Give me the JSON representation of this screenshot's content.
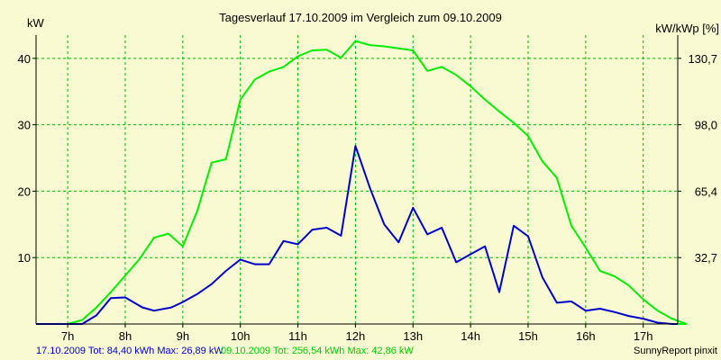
{
  "chart_data": {
    "type": "line",
    "title": "Tagesverlauf 17.10.2009 im Vergleich zum 09.10.2009",
    "ylabel_left": "kW",
    "ylabel_right": "kW/kWp [%]",
    "x_unit": "hour of day",
    "xlim": [
      6.45,
      17.6
    ],
    "ylim": [
      0,
      43.5
    ],
    "grid": true,
    "x_ticks": [
      {
        "v": 7,
        "label": "7h"
      },
      {
        "v": 8,
        "label": "8h"
      },
      {
        "v": 9,
        "label": "9h"
      },
      {
        "v": 10,
        "label": "10h"
      },
      {
        "v": 11,
        "label": "11h"
      },
      {
        "v": 12,
        "label": "12h"
      },
      {
        "v": 13,
        "label": "13h"
      },
      {
        "v": 14,
        "label": "14h"
      },
      {
        "v": 15,
        "label": "15h"
      },
      {
        "v": 16,
        "label": "16h"
      },
      {
        "v": 17,
        "label": "17h"
      }
    ],
    "y_ticks_left": [
      {
        "v": 10,
        "label": "10"
      },
      {
        "v": 20,
        "label": "20"
      },
      {
        "v": 30,
        "label": "30"
      },
      {
        "v": 40,
        "label": "40"
      }
    ],
    "y_ticks_right": [
      {
        "v": 10,
        "label": "32,7"
      },
      {
        "v": 20,
        "label": "65,4"
      },
      {
        "v": 30,
        "label": "98,0"
      },
      {
        "v": 40,
        "label": "130,7"
      }
    ],
    "series": [
      {
        "name": "17.10.2009",
        "color": "#0000cc",
        "points": [
          [
            6.45,
            0
          ],
          [
            6.9,
            0
          ],
          [
            7.25,
            0
          ],
          [
            7.5,
            1.3
          ],
          [
            7.75,
            3.9
          ],
          [
            8.0,
            4.0
          ],
          [
            8.3,
            2.5
          ],
          [
            8.5,
            2.0
          ],
          [
            8.8,
            2.5
          ],
          [
            9.0,
            3.3
          ],
          [
            9.25,
            4.5
          ],
          [
            9.5,
            6.0
          ],
          [
            9.75,
            8.0
          ],
          [
            10.0,
            9.7
          ],
          [
            10.25,
            9.0
          ],
          [
            10.5,
            9.0
          ],
          [
            10.75,
            12.5
          ],
          [
            11.0,
            12.0
          ],
          [
            11.25,
            14.2
          ],
          [
            11.5,
            14.5
          ],
          [
            11.75,
            13.3
          ],
          [
            12.0,
            26.8
          ],
          [
            12.25,
            20.5
          ],
          [
            12.5,
            15.0
          ],
          [
            12.75,
            12.3
          ],
          [
            13.0,
            17.5
          ],
          [
            13.25,
            13.5
          ],
          [
            13.5,
            14.5
          ],
          [
            13.75,
            9.3
          ],
          [
            14.0,
            10.5
          ],
          [
            14.25,
            11.7
          ],
          [
            14.5,
            4.8
          ],
          [
            14.75,
            14.8
          ],
          [
            15.0,
            13.2
          ],
          [
            15.25,
            7.0
          ],
          [
            15.5,
            3.2
          ],
          [
            15.75,
            3.4
          ],
          [
            16.0,
            2.0
          ],
          [
            16.25,
            2.3
          ],
          [
            16.5,
            1.8
          ],
          [
            16.75,
            1.2
          ],
          [
            17.0,
            0.8
          ],
          [
            17.25,
            0.2
          ],
          [
            17.5,
            0
          ],
          [
            17.6,
            0
          ]
        ]
      },
      {
        "name": "09.10.2009",
        "color": "#00ee00",
        "points": [
          [
            6.45,
            0
          ],
          [
            7.0,
            0
          ],
          [
            7.25,
            0.6
          ],
          [
            7.5,
            2.5
          ],
          [
            7.75,
            4.8
          ],
          [
            8.0,
            7.3
          ],
          [
            8.25,
            9.8
          ],
          [
            8.5,
            13.0
          ],
          [
            8.75,
            13.6
          ],
          [
            9.0,
            11.7
          ],
          [
            9.25,
            17.0
          ],
          [
            9.5,
            24.3
          ],
          [
            9.75,
            24.8
          ],
          [
            10.0,
            33.8
          ],
          [
            10.25,
            36.8
          ],
          [
            10.5,
            38.0
          ],
          [
            10.75,
            38.7
          ],
          [
            11.0,
            40.3
          ],
          [
            11.25,
            41.2
          ],
          [
            11.5,
            41.3
          ],
          [
            11.75,
            40.1
          ],
          [
            12.0,
            42.6
          ],
          [
            12.25,
            42.0
          ],
          [
            12.5,
            41.8
          ],
          [
            12.75,
            41.5
          ],
          [
            13.0,
            41.2
          ],
          [
            13.25,
            38.1
          ],
          [
            13.5,
            38.7
          ],
          [
            13.75,
            37.5
          ],
          [
            14.0,
            35.8
          ],
          [
            14.25,
            33.8
          ],
          [
            14.5,
            32.0
          ],
          [
            14.75,
            30.3
          ],
          [
            15.0,
            28.3
          ],
          [
            15.25,
            24.5
          ],
          [
            15.5,
            22.0
          ],
          [
            15.75,
            14.8
          ],
          [
            16.0,
            11.5
          ],
          [
            16.25,
            8.0
          ],
          [
            16.5,
            7.2
          ],
          [
            16.75,
            5.8
          ],
          [
            17.0,
            3.7
          ],
          [
            17.25,
            2.0
          ],
          [
            17.5,
            0.8
          ],
          [
            17.75,
            0
          ],
          [
            17.6,
            0
          ]
        ]
      }
    ]
  },
  "footer": {
    "s1_text": "17.10.2009 Tot: 84,40 kWh Max: 26,89 kW",
    "s2_text": "09.10.2009 Tot: 256,54 kWh Max: 42,86 kW",
    "brand": "SunnyReport pinxit"
  }
}
